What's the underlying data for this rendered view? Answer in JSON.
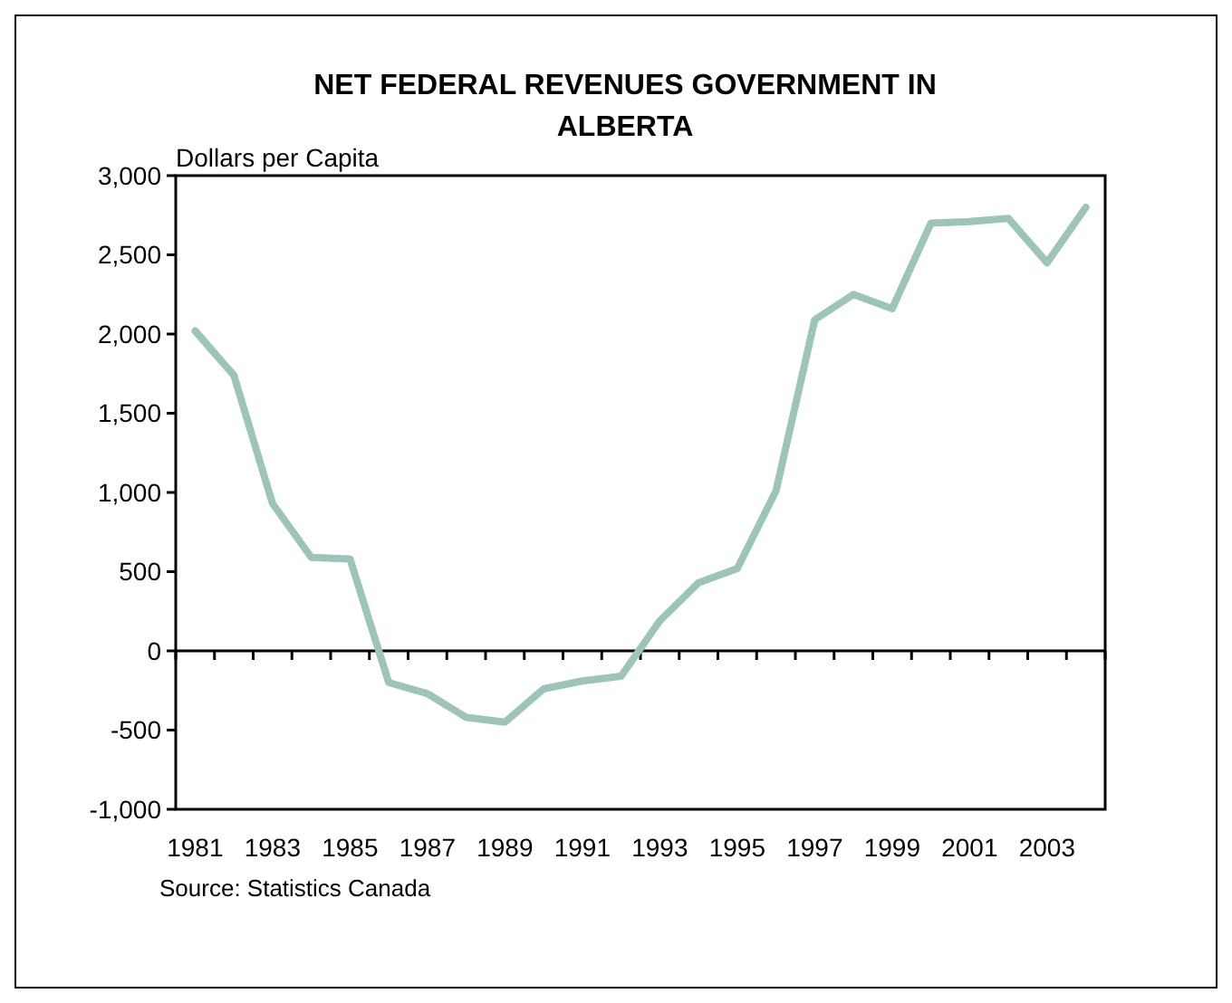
{
  "chart_data": {
    "type": "line",
    "title": "NET FEDERAL REVENUES GOVERNMENT IN ALBERTA",
    "ylabel": "Dollars per Capita",
    "categories": [
      "1981",
      null,
      "1983",
      null,
      "1985",
      null,
      "1987",
      null,
      "1989",
      null,
      "1991",
      null,
      "1993",
      null,
      "1995",
      null,
      "1997",
      null,
      "1999",
      null,
      "2001",
      null,
      "2003",
      null
    ],
    "series": [
      {
        "color": "#9cc4b9",
        "values": [
          2020,
          1740,
          930,
          590,
          580,
          -200,
          -270,
          -420,
          -450,
          -240,
          -190,
          -160,
          190,
          430,
          520,
          1010,
          2090,
          2250,
          2160,
          2700,
          2710,
          2730,
          2450,
          2800
        ]
      }
    ],
    "ylim": [
      -1000,
      3000
    ],
    "yticks": [
      {
        "value": -1000,
        "label": "-1,000"
      },
      {
        "value": -500,
        "label": "-500"
      },
      0,
      500,
      {
        "value": 1000,
        "label": "1,000"
      },
      {
        "value": 1500,
        "label": "1,500"
      },
      {
        "value": 2000,
        "label": "2,000"
      },
      {
        "value": 2500,
        "label": "2,500"
      },
      {
        "value": 3000,
        "label": "3,000"
      }
    ],
    "marker": "none",
    "line_style": "solid",
    "annotations": [
      "Source: Statistics Canada"
    ]
  }
}
